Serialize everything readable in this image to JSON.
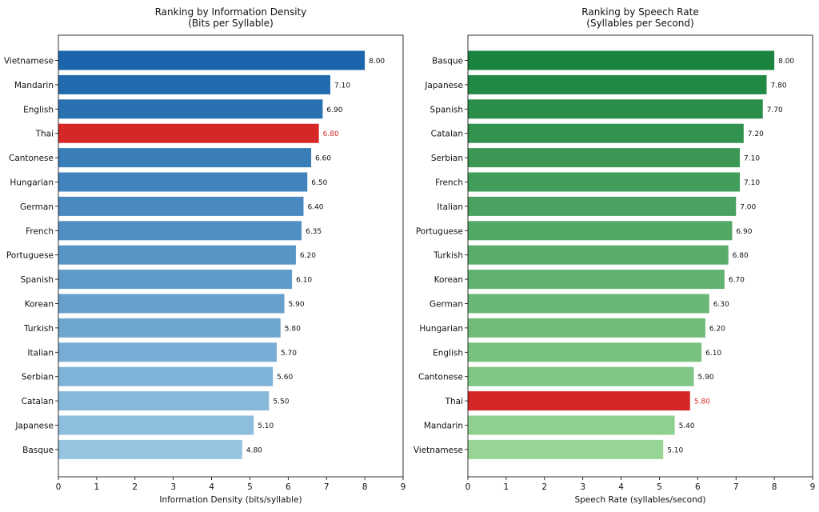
{
  "chart_data": [
    {
      "type": "bar",
      "orientation": "horizontal",
      "title": "Ranking by Information Density",
      "subtitle": "(Bits per Syllable)",
      "xlabel": "Information Density (bits/syllable)",
      "ylabel": "",
      "xlim": [
        0,
        9
      ],
      "xticks": [
        "0",
        "1",
        "2",
        "3",
        "4",
        "5",
        "6",
        "7",
        "8",
        "9"
      ],
      "grid": false,
      "categories": [
        "Vietnamese",
        "Mandarin",
        "English",
        "Thai",
        "Cantonese",
        "Hungarian",
        "German",
        "French",
        "Portuguese",
        "Spanish",
        "Korean",
        "Turkish",
        "Italian",
        "Serbian",
        "Catalan",
        "Japanese",
        "Basque"
      ],
      "values": [
        8.0,
        7.1,
        6.9,
        6.8,
        6.6,
        6.5,
        6.4,
        6.35,
        6.2,
        6.1,
        5.9,
        5.8,
        5.7,
        5.6,
        5.5,
        5.1,
        4.8
      ],
      "value_labels": [
        "8.00",
        "7.10",
        "6.90",
        "6.80",
        "6.60",
        "6.50",
        "6.40",
        "6.35",
        "6.20",
        "6.10",
        "5.90",
        "5.80",
        "5.70",
        "5.60",
        "5.50",
        "5.10",
        "4.80"
      ],
      "highlight": "Thai",
      "colors": {
        "gradient_dark": "#1a65ab",
        "gradient_light": "#96c4e1",
        "highlight": "#d62728"
      }
    },
    {
      "type": "bar",
      "orientation": "horizontal",
      "title": "Ranking by Speech Rate",
      "subtitle": "(Syllables per Second)",
      "xlabel": "Speech Rate (syllables/second)",
      "ylabel": "",
      "xlim": [
        0,
        9
      ],
      "xticks": [
        "0",
        "1",
        "2",
        "3",
        "4",
        "5",
        "6",
        "7",
        "8",
        "9"
      ],
      "grid": false,
      "categories": [
        "Basque",
        "Japanese",
        "Spanish",
        "Catalan",
        "Serbian",
        "French",
        "Italian",
        "Portuguese",
        "Turkish",
        "Korean",
        "German",
        "Hungarian",
        "English",
        "Cantonese",
        "Thai",
        "Mandarin",
        "Vietnamese"
      ],
      "values": [
        8.0,
        7.8,
        7.7,
        7.2,
        7.1,
        7.1,
        7.0,
        6.9,
        6.8,
        6.7,
        6.3,
        6.2,
        6.1,
        5.9,
        5.8,
        5.4,
        5.1
      ],
      "value_labels": [
        "8.00",
        "7.80",
        "7.70",
        "7.20",
        "7.10",
        "7.10",
        "7.00",
        "6.90",
        "6.80",
        "6.70",
        "6.30",
        "6.20",
        "6.10",
        "5.90",
        "5.80",
        "5.40",
        "5.10"
      ],
      "highlight": "Thai",
      "colors": {
        "gradient_dark": "#1a843f",
        "gradient_light": "#98d594",
        "highlight": "#d62728"
      }
    }
  ]
}
